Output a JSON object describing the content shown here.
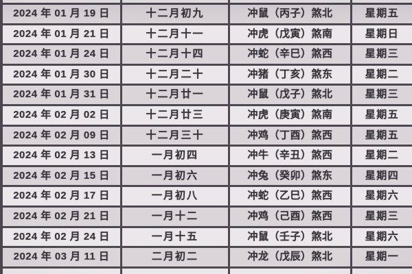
{
  "palette": {
    "row_dark_bg": "#dbd5da",
    "row_light_bg": "#ece7ea",
    "grid_border": "#4d4751",
    "text": "#36323a"
  },
  "table": {
    "rows": [
      {
        "date": "2024 年 01 月 19 日",
        "lunar": "十二月初九",
        "clash": "冲鼠（丙子）煞北",
        "weekday": "星期五"
      },
      {
        "date": "2024 年 01 月 21 日",
        "lunar": "十二月十一",
        "clash": "冲虎（戊寅）煞南",
        "weekday": "星期日"
      },
      {
        "date": "2024 年 01 月 24 日",
        "lunar": "十二月十四",
        "clash": "冲蛇（辛巳）煞西",
        "weekday": "星期三"
      },
      {
        "date": "2024 年 01 月 30 日",
        "lunar": "十二月二十",
        "clash": "冲猪（丁亥）煞东",
        "weekday": "星期二"
      },
      {
        "date": "2024 年 01 月 31 日",
        "lunar": "十二月廿一",
        "clash": "冲鼠（戊子）煞北",
        "weekday": "星期三"
      },
      {
        "date": "2024 年 02 月 02 日",
        "lunar": "十二月廿三",
        "clash": "冲虎（庚寅）煞南",
        "weekday": "星期五"
      },
      {
        "date": "2024 年 02 月 09 日",
        "lunar": "十二月三十",
        "clash": "冲鸡（丁酉）煞西",
        "weekday": "星期五"
      },
      {
        "date": "2024 年 02 月 13 日",
        "lunar": "一月初四",
        "clash": "冲牛（辛丑）煞西",
        "weekday": "星期二"
      },
      {
        "date": "2024 年 02 月 15 日",
        "lunar": "一月初六",
        "clash": "冲兔（癸卯）煞东",
        "weekday": "星期四"
      },
      {
        "date": "2024 年 02 月 17 日",
        "lunar": "一月初八",
        "clash": "冲蛇（乙巳）煞西",
        "weekday": "星期六"
      },
      {
        "date": "2024 年 02 月 21 日",
        "lunar": "一月十二",
        "clash": "冲鸡（己酉）煞西",
        "weekday": "星期三"
      },
      {
        "date": "2024 年 02 月 24 日",
        "lunar": "一月十五",
        "clash": "冲鼠（壬子）煞北",
        "weekday": "星期六"
      },
      {
        "date": "2024 年 03 月 11 日",
        "lunar": "二月初二",
        "clash": "冲龙（戊辰）煞北",
        "weekday": "星期一"
      }
    ]
  }
}
